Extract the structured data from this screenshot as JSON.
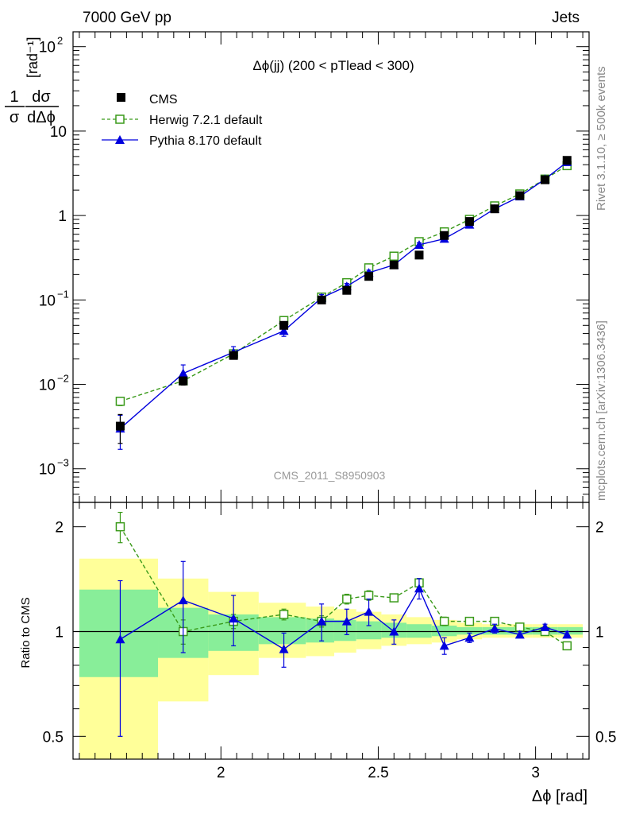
{
  "header": {
    "left_title": "7000 GeV pp",
    "right_title": "Jets"
  },
  "side_labels": {
    "rivet": "Rivet 3.1.10, ≥ 500k events",
    "source": "mcplots.cern.ch [arXiv:1306.3436]"
  },
  "watermark": "CMS_2011_S8950903",
  "chart_data": [
    {
      "type": "line",
      "title": "Δϕ(jj) (200 < pTlead <  300)",
      "ylabel_parts": {
        "frac_num": "1",
        "frac_num2": "dσ",
        "frac_den": "σ",
        "frac_den2": "dΔϕ",
        "unit": "[rad⁻¹]"
      },
      "xlabel": "Δϕ [rad]",
      "yscale": "log",
      "xlim": [
        1.53,
        3.17
      ],
      "ylim": [
        0.0004,
        150
      ],
      "yticks": [
        {
          "v": 0.001,
          "base": "10",
          "exp": "−3"
        },
        {
          "v": 0.01,
          "base": "10",
          "exp": "−2"
        },
        {
          "v": 0.1,
          "base": "10",
          "exp": "−1"
        },
        {
          "v": 1,
          "base": "1",
          "exp": ""
        },
        {
          "v": 10,
          "base": "10",
          "exp": ""
        },
        {
          "v": 100,
          "base": "10",
          "exp": "2"
        }
      ],
      "series": [
        {
          "name": "CMS",
          "color": "#000000",
          "marker": "square-filled",
          "x": [
            1.68,
            1.88,
            2.04,
            2.2,
            2.32,
            2.4,
            2.47,
            2.55,
            2.63,
            2.71,
            2.79,
            2.87,
            2.95,
            3.03,
            3.1
          ],
          "y": [
            0.0032,
            0.011,
            0.022,
            0.05,
            0.1,
            0.13,
            0.19,
            0.26,
            0.34,
            0.58,
            0.85,
            1.2,
            1.72,
            2.65,
            4.5
          ],
          "err": [
            0.0012,
            0.0012,
            0.002,
            0.004,
            0.008,
            0.01,
            0.015,
            0.02,
            0.02,
            0.03,
            0.04,
            0.05,
            0.06,
            0.08,
            0.12
          ]
        },
        {
          "name": "Herwig 7.2.1 default",
          "color": "#3a9a1a",
          "marker": "square-open",
          "dashed": true,
          "x": [
            1.68,
            1.88,
            2.04,
            2.2,
            2.32,
            2.4,
            2.47,
            2.55,
            2.63,
            2.71,
            2.79,
            2.87,
            2.95,
            3.03,
            3.1
          ],
          "y": [
            0.0063,
            0.011,
            0.023,
            0.057,
            0.108,
            0.16,
            0.24,
            0.33,
            0.49,
            0.64,
            0.9,
            1.3,
            1.8,
            2.7,
            3.9
          ],
          "err": [
            0.0007,
            0.0009,
            0.0015,
            0.003,
            0.006,
            0.008,
            0.01,
            0.012,
            0.015,
            0.02,
            0.03,
            0.04,
            0.05,
            0.07,
            0.1
          ]
        },
        {
          "name": "Pythia 8.170 default",
          "color": "#0000dd",
          "marker": "triangle-filled",
          "x": [
            1.68,
            1.88,
            2.04,
            2.2,
            2.32,
            2.4,
            2.47,
            2.55,
            2.63,
            2.71,
            2.79,
            2.87,
            2.95,
            3.03,
            3.1
          ],
          "y": [
            0.003,
            0.0135,
            0.024,
            0.043,
            0.106,
            0.145,
            0.21,
            0.26,
            0.45,
            0.53,
            0.78,
            1.2,
            1.68,
            2.7,
            4.3
          ],
          "err": [
            0.0013,
            0.0035,
            0.004,
            0.006,
            0.01,
            0.012,
            0.015,
            0.02,
            0.025,
            0.03,
            0.04,
            0.05,
            0.06,
            0.08,
            0.1
          ]
        }
      ]
    },
    {
      "type": "line",
      "ylabel": "Ratio to CMS",
      "xlabel": "Δϕ [rad]",
      "yscale": "log",
      "xlim": [
        1.53,
        3.17
      ],
      "ylim": [
        0.43,
        2.35
      ],
      "yticks": [
        0.5,
        1,
        2
      ],
      "xticks": [
        2,
        2.5,
        3
      ],
      "reference": 1,
      "uncertainty_bands": {
        "edges": [
          1.55,
          1.8,
          1.96,
          2.12,
          2.27,
          2.36,
          2.43,
          2.51,
          2.59,
          2.67,
          2.75,
          2.83,
          2.91,
          2.99,
          3.07,
          3.15
        ],
        "inner_color": "#88ee99",
        "outer_color": "#ffff99",
        "inner_lo": [
          0.74,
          0.84,
          0.88,
          0.92,
          0.93,
          0.94,
          0.95,
          0.96,
          0.96,
          0.97,
          0.98,
          0.98,
          0.98,
          0.98,
          0.98
        ],
        "inner_hi": [
          1.32,
          1.17,
          1.12,
          1.1,
          1.09,
          1.08,
          1.07,
          1.06,
          1.05,
          1.04,
          1.03,
          1.03,
          1.03,
          1.03,
          1.03
        ],
        "outer_lo": [
          0.38,
          0.63,
          0.75,
          0.84,
          0.85,
          0.87,
          0.89,
          0.91,
          0.92,
          0.93,
          0.95,
          0.96,
          0.96,
          0.96,
          0.96
        ],
        "outer_hi": [
          1.62,
          1.42,
          1.3,
          1.21,
          1.18,
          1.16,
          1.14,
          1.12,
          1.1,
          1.08,
          1.06,
          1.05,
          1.05,
          1.05,
          1.05
        ]
      },
      "series": [
        {
          "name": "Herwig 7.2.1 default",
          "color": "#3a9a1a",
          "marker": "square-open",
          "dashed": true,
          "x": [
            1.68,
            1.88,
            2.04,
            2.2,
            2.32,
            2.4,
            2.47,
            2.55,
            2.63,
            2.71,
            2.79,
            2.87,
            2.95,
            3.03,
            3.1
          ],
          "y": [
            2.0,
            1.0,
            1.07,
            1.12,
            1.07,
            1.24,
            1.27,
            1.25,
            1.38,
            1.07,
            1.07,
            1.07,
            1.03,
            1.0,
            0.91
          ],
          "err": [
            0.2,
            0.08,
            0.05,
            0.04,
            0.04,
            0.04,
            0.04,
            0.03,
            0.04,
            0.03,
            0.02,
            0.02,
            0.02,
            0.02,
            0.02
          ]
        },
        {
          "name": "Pythia 8.170 default",
          "color": "#0000dd",
          "marker": "triangle-filled",
          "x": [
            1.68,
            1.88,
            2.04,
            2.2,
            2.32,
            2.4,
            2.47,
            2.55,
            2.63,
            2.71,
            2.79,
            2.87,
            2.95,
            3.03,
            3.1
          ],
          "y": [
            0.95,
            1.23,
            1.09,
            0.89,
            1.07,
            1.07,
            1.14,
            1.0,
            1.33,
            0.91,
            0.96,
            1.02,
            0.98,
            1.03,
            0.98
          ],
          "err": [
            0.45,
            0.36,
            0.18,
            0.1,
            0.13,
            0.09,
            0.1,
            0.08,
            0.09,
            0.05,
            0.03,
            0.03,
            0.02,
            0.02,
            0.02
          ]
        }
      ]
    }
  ]
}
